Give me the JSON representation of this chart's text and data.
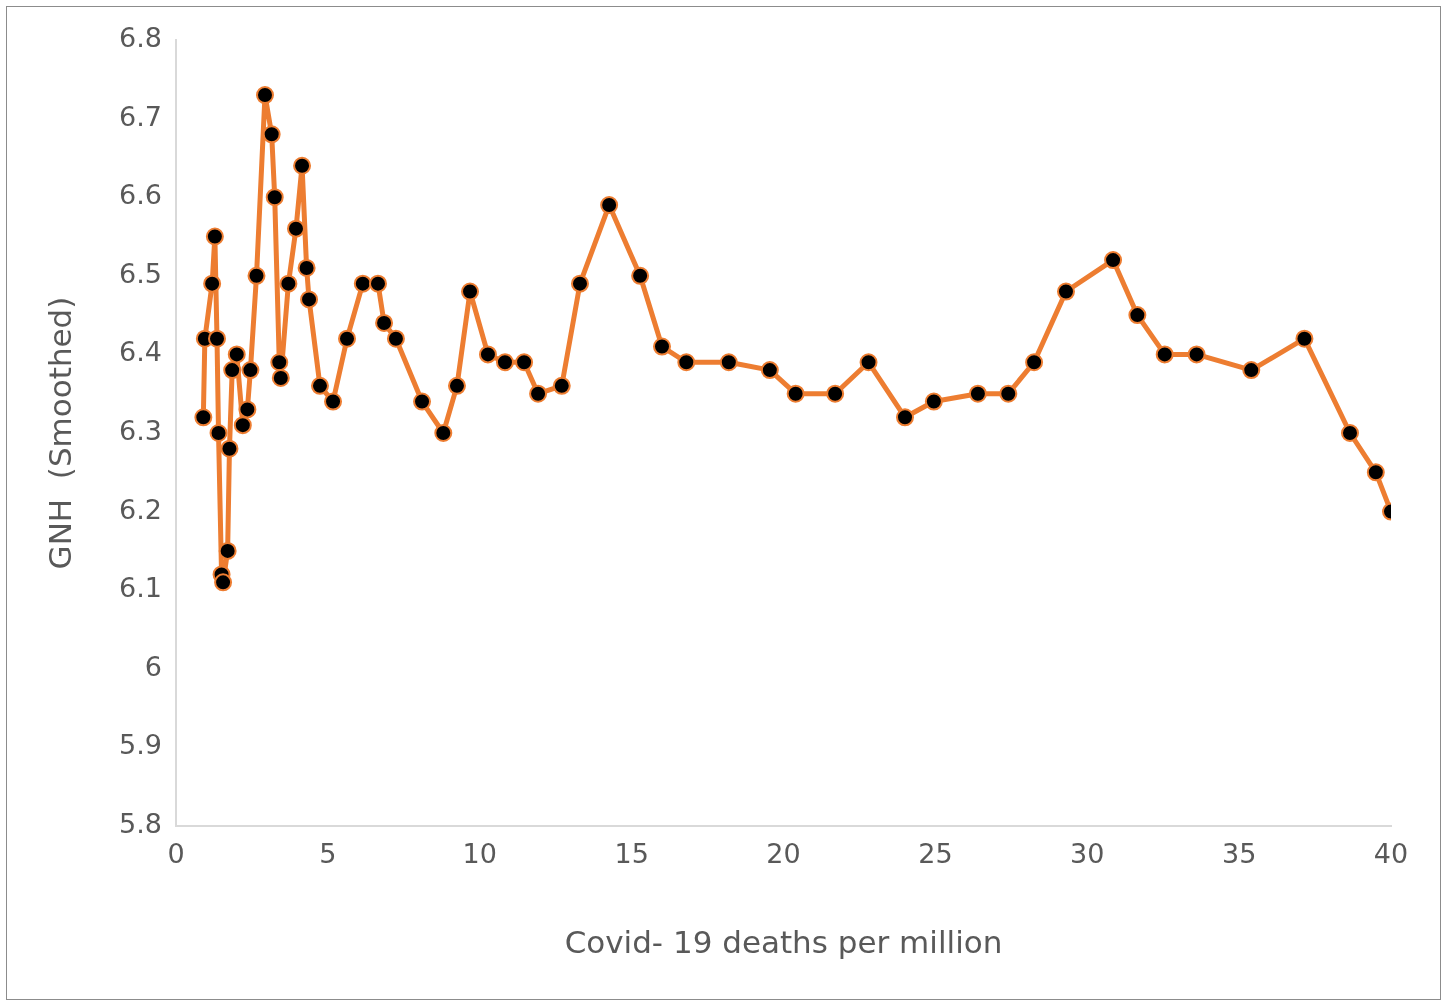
{
  "chart_data": {
    "type": "line",
    "xlabel": "Covid- 19 deaths per million",
    "ylabel": "GNH  (Smoothed)",
    "xlim": [
      0,
      40
    ],
    "xticks": [
      0,
      5,
      10,
      15,
      20,
      25,
      30,
      35,
      40
    ],
    "ylim": [
      5.8,
      6.8
    ],
    "yticks": [
      5.8,
      5.9,
      {
        "value": 6,
        "label": "6"
      },
      6.1,
      6.2,
      6.3,
      6.4,
      6.5,
      6.6,
      6.7,
      6.8
    ],
    "grid": false,
    "legend": false,
    "marker": "circle",
    "line_style": "solid",
    "series": [
      {
        "color": "#ed7d31",
        "x": [
          0.9,
          0.95,
          1.19,
          1.28,
          1.35,
          1.4,
          1.5,
          1.55,
          1.7,
          1.76,
          1.85,
          2.0,
          2.2,
          2.35,
          2.45,
          2.65,
          2.93,
          3.15,
          3.25,
          3.4,
          3.45,
          3.7,
          3.95,
          4.15,
          4.3,
          4.38,
          4.74,
          5.17,
          5.63,
          6.15,
          6.65,
          6.85,
          7.24,
          8.1,
          8.8,
          9.25,
          9.68,
          10.27,
          10.83,
          11.46,
          11.92,
          12.7,
          13.3,
          14.26,
          15.28,
          16.0,
          16.8,
          18.2,
          19.55,
          20.4,
          21.7,
          22.8,
          24.0,
          24.95,
          26.4,
          27.4,
          28.25,
          29.3,
          30.85,
          31.65,
          32.55,
          33.6,
          35.4,
          37.15,
          38.65,
          39.5,
          40.0
        ],
        "values": [
          6.32,
          6.42,
          6.49,
          6.55,
          6.42,
          6.3,
          6.12,
          6.11,
          6.15,
          6.28,
          6.38,
          6.4,
          6.31,
          6.33,
          6.38,
          6.5,
          6.73,
          6.68,
          6.6,
          6.39,
          6.37,
          6.49,
          6.56,
          6.64,
          6.51,
          6.47,
          6.36,
          6.34,
          6.42,
          6.49,
          6.49,
          6.44,
          6.42,
          6.34,
          6.3,
          6.36,
          6.48,
          6.4,
          6.39,
          6.39,
          6.35,
          6.36,
          6.49,
          6.59,
          6.5,
          6.41,
          6.39,
          6.39,
          6.38,
          6.35,
          6.35,
          6.39,
          6.32,
          6.34,
          6.35,
          6.35,
          6.39,
          6.48,
          6.52,
          6.45,
          6.4,
          6.4,
          6.38,
          6.42,
          6.3,
          6.25,
          6.2
        ]
      }
    ]
  }
}
